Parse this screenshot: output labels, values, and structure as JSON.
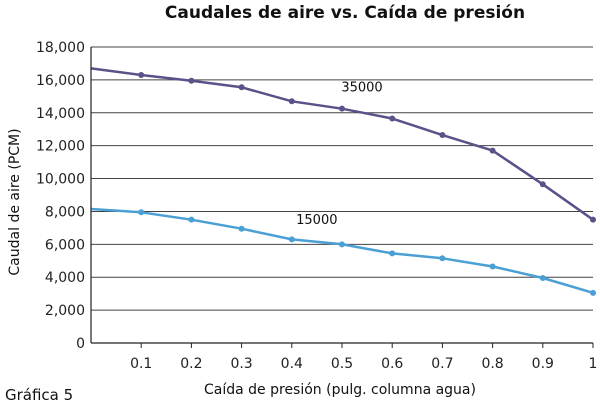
{
  "chart_data": {
    "type": "line",
    "title": "Caudales de aire vs. Caída de presión",
    "xlabel": "Caída de presión (pulg. columna agua)",
    "ylabel": "Caudal de aire (PCM)",
    "caption": "Gráfica 5",
    "x": [
      0,
      0.1,
      0.2,
      0.3,
      0.4,
      0.5,
      0.6,
      0.7,
      0.8,
      0.9,
      1.0
    ],
    "xticks": [
      "0.1",
      "0.2",
      "0.3",
      "0.4",
      "0.5",
      "0.6",
      "0.7",
      "0.8",
      "0.9",
      "1"
    ],
    "yticks": [
      "0",
      "2,000",
      "4,000",
      "6,000",
      "8,000",
      "10,000",
      "12,000",
      "14,000",
      "16,000",
      "18,000"
    ],
    "xlim": [
      0,
      1.0
    ],
    "ylim": [
      0,
      18000
    ],
    "grid": "horizontal",
    "series": [
      {
        "name": "35000",
        "color": "#5a5288",
        "values": [
          16700,
          16300,
          15950,
          15550,
          14700,
          14250,
          13650,
          12650,
          11700,
          9650,
          7500
        ]
      },
      {
        "name": "15000",
        "color": "#4a9fd4",
        "values": [
          8150,
          7950,
          7500,
          6950,
          6300,
          6000,
          5450,
          5150,
          4650,
          3950,
          3050
        ]
      }
    ]
  }
}
